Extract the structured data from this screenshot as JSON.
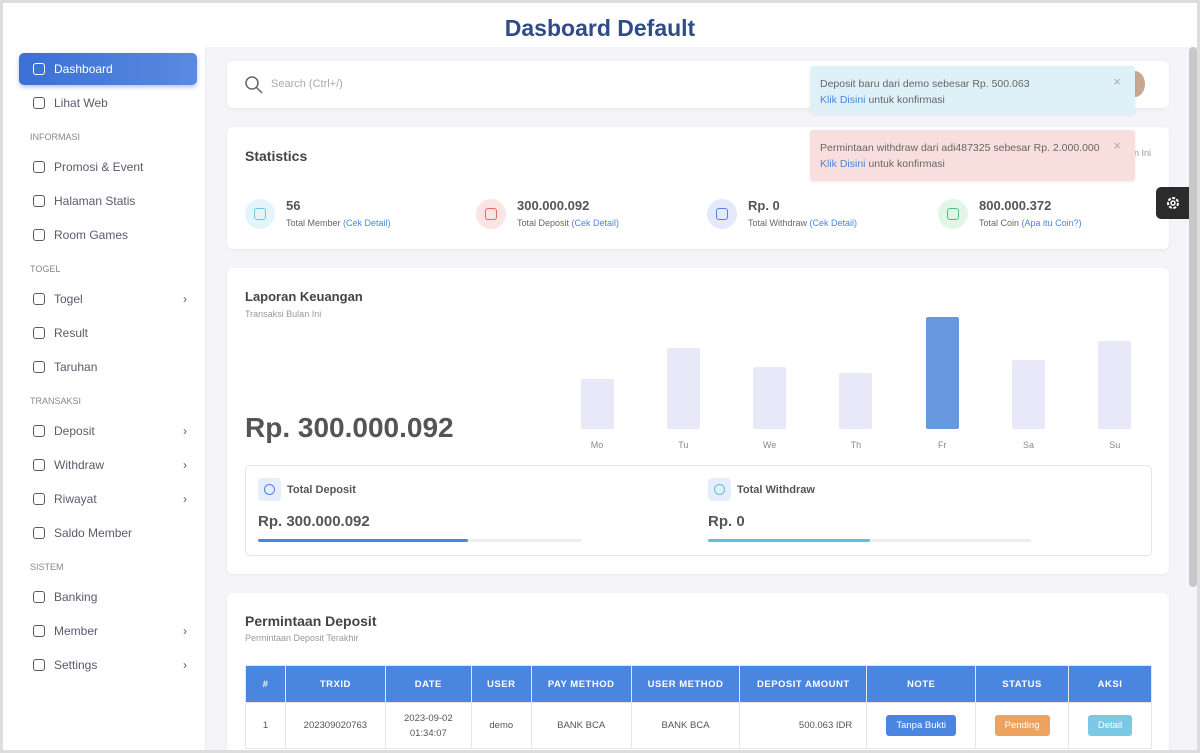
{
  "header": {
    "title": "Dasboard Default"
  },
  "sidebar": {
    "main": [
      {
        "label": "Dashboard",
        "active": true
      },
      {
        "label": "Lihat Web"
      }
    ],
    "sections": [
      {
        "heading": "INFORMASI",
        "items": [
          {
            "label": "Promosi & Event"
          },
          {
            "label": "Halaman Statis"
          },
          {
            "label": "Room Games"
          }
        ]
      },
      {
        "heading": "TOGEL",
        "items": [
          {
            "label": "Togel",
            "submenu": true
          },
          {
            "label": "Result"
          },
          {
            "label": "Taruhan"
          }
        ]
      },
      {
        "heading": "TRANSAKSI",
        "items": [
          {
            "label": "Deposit",
            "submenu": true
          },
          {
            "label": "Withdraw",
            "submenu": true
          },
          {
            "label": "Riwayat",
            "submenu": true
          },
          {
            "label": "Saldo Member"
          }
        ]
      },
      {
        "heading": "SISTEM",
        "items": [
          {
            "label": "Banking"
          },
          {
            "label": "Member",
            "submenu": true
          },
          {
            "label": "Settings",
            "submenu": true
          }
        ]
      }
    ]
  },
  "search": {
    "placeholder": "Search (Ctrl+/)"
  },
  "notifications": [
    {
      "text": "Deposit baru dari demo sebesar Rp. 500.063",
      "link": "Klik Disini",
      "suffix": "untuk konfirmasi",
      "color": "#dff1f8"
    },
    {
      "text": "Permintaan withdraw dari adi487325 sebesar Rp. 2.000.000",
      "link": "Klik Disini",
      "suffix": "untuk konfirmasi",
      "color": "#f8dedd"
    }
  ],
  "statistics": {
    "title": "Statistics",
    "period": "Bulan Ini",
    "items": [
      {
        "value": "56",
        "label": "Total Member",
        "link": "(Cek Detail)",
        "color": "#6cc5e8",
        "bg": "#e3f5fb"
      },
      {
        "value": "300.000.092",
        "label": "Total Deposit",
        "link": "(Cek Detail)",
        "color": "#e06a5a",
        "bg": "#fbe4e1"
      },
      {
        "value": "Rp. 0",
        "label": "Total Withdraw",
        "link": "(Cek Detail)",
        "color": "#5a7fe0",
        "bg": "#e4e9fb"
      },
      {
        "value": "800.000.372",
        "label": "Total Coin",
        "link": "(Apa itu Coin?)",
        "color": "#4cc07a",
        "bg": "#e1f6e9"
      }
    ]
  },
  "finance": {
    "title": "Laporan Keuangan",
    "subtitle": "Transaksi Bulan Ini",
    "total": "Rp. 300.000.092",
    "chart_data": {
      "type": "bar",
      "categories": [
        "Mo",
        "Tu",
        "We",
        "Th",
        "Fr",
        "Sa",
        "Su"
      ],
      "values": [
        50,
        81,
        62,
        56,
        112,
        69,
        88
      ],
      "color": "#e8e8f8",
      "highlight_color": "#6898e0",
      "highlight_index": 4
    },
    "summary": [
      {
        "label": "Total Deposit",
        "value": "Rp. 300.000.092",
        "progress": 65,
        "color": "#4a86e0"
      },
      {
        "label": "Total Withdraw",
        "value": "Rp. 0",
        "progress": 50,
        "color": "#5bc0de"
      }
    ]
  },
  "deposits": {
    "title": "Permintaan Deposit",
    "subtitle": "Permintaan Deposit Terakhir",
    "columns": [
      "#",
      "TRXID",
      "DATE",
      "USER",
      "PAY METHOD",
      "USER METHOD",
      "DEPOSIT AMOUNT",
      "NOTE",
      "STATUS",
      "AKSI"
    ],
    "rows": [
      [
        "1",
        "202309020763",
        "2023-09-02 01:34:07",
        "demo",
        "BANK BCA",
        "BANK BCA",
        "500.063 IDR",
        "Tanpa Bukti",
        "Pending",
        "Detail"
      ]
    ]
  }
}
